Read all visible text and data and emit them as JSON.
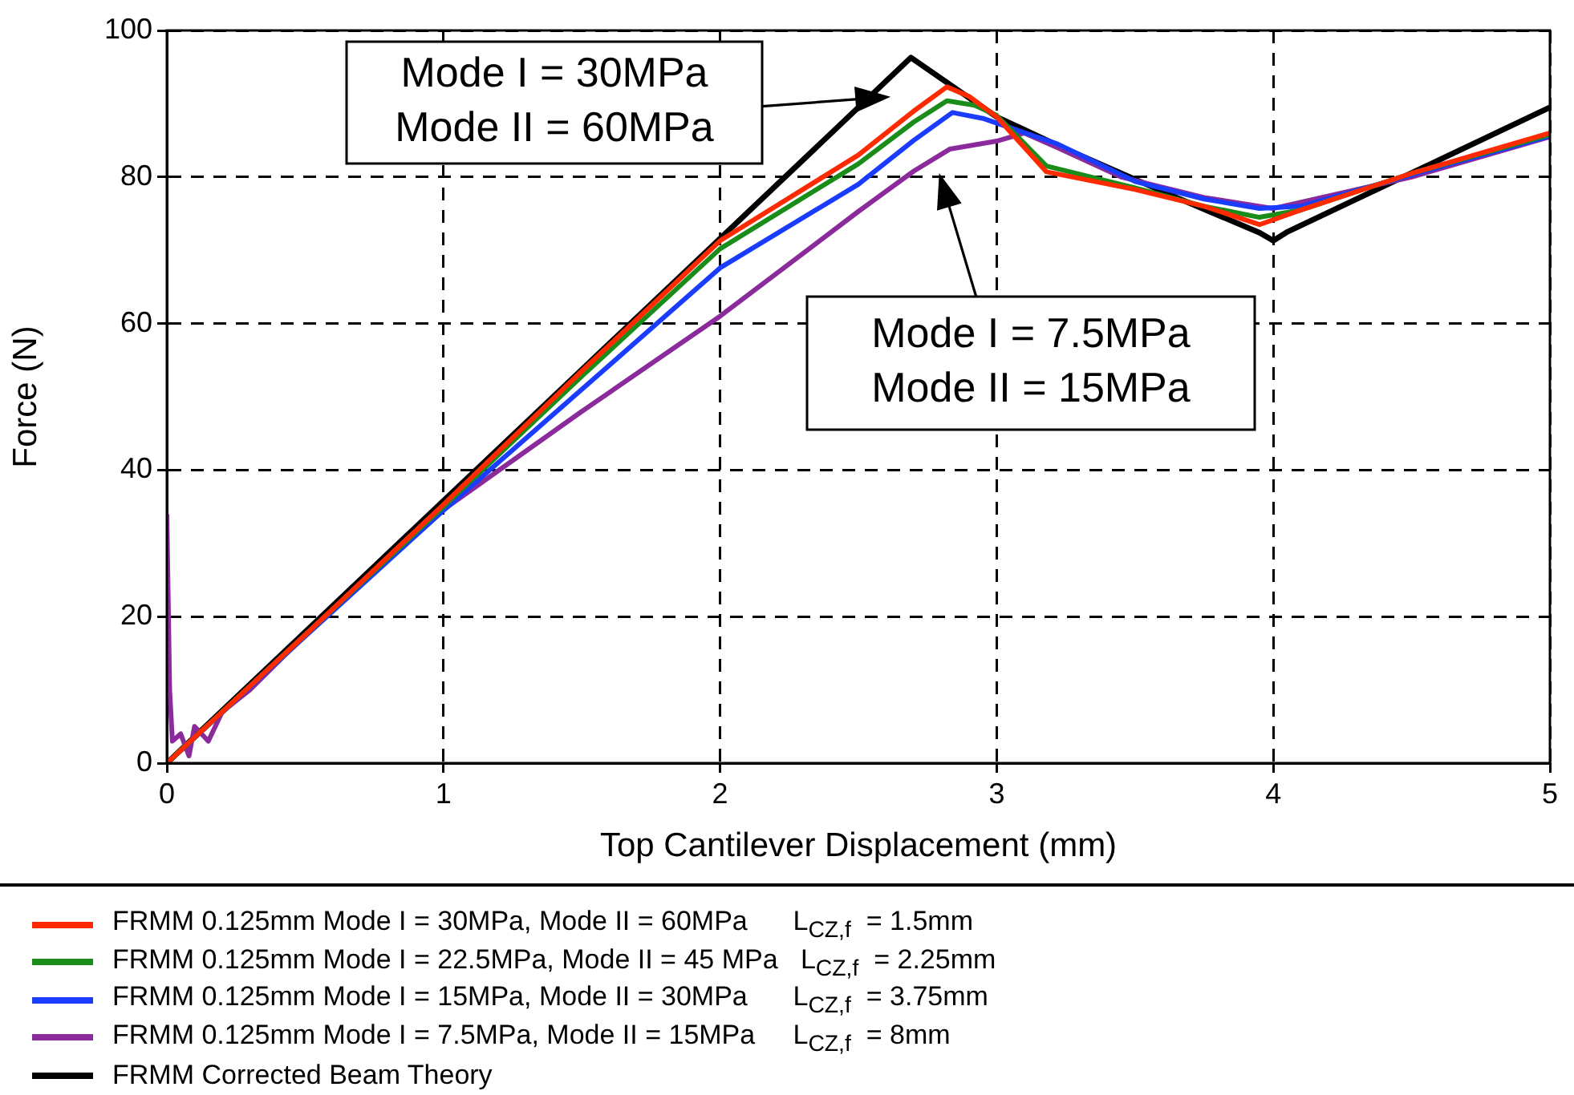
{
  "chart_data": {
    "type": "line",
    "xlabel": "Top Cantilever Displacement (mm)",
    "ylabel": "Force (N)",
    "xlim": [
      0,
      5
    ],
    "xticks": [
      0,
      1,
      2,
      3,
      4,
      5
    ],
    "ylim": [
      0,
      100
    ],
    "yticks": [
      0,
      20,
      40,
      60,
      80,
      100
    ],
    "grid": true,
    "legend": "bottom",
    "marker": "none",
    "line_style": "solid",
    "annotations": [
      "Mode I = 30MPa\nMode II = 60MPa",
      "Mode I = 7.5MPa\nMode II = 15MPa"
    ],
    "series": [
      {
        "name": "FRMM 0.125mm Mode I = 30MPa, Mode II = 60MPa      L$_{CZ,f}$  = 1.5mm",
        "color": "#ff2a00",
        "x": [
          0,
          0.5,
          1,
          1.5,
          2,
          2.5,
          2.7,
          2.82,
          2.9,
          3,
          3.18,
          3.5,
          3.75,
          3.95,
          4.1,
          4.5,
          5
        ],
        "values": [
          0,
          17.5,
          35.3,
          53.5,
          71.3,
          83,
          89,
          92.3,
          91,
          88.2,
          80.7,
          78.3,
          76,
          73.5,
          75.5,
          80.5,
          86
        ]
      },
      {
        "name": "FRMM 0.125mm Mode I = 22.5MPa, Mode II = 45 MPa   L$_{CZ,f}$  = 2.25mm",
        "color": "#1a8c1a",
        "x": [
          0,
          0.5,
          1,
          1.5,
          2,
          2.5,
          2.7,
          2.82,
          2.92,
          3,
          3.18,
          3.5,
          3.75,
          3.95,
          4.1,
          4.5,
          5
        ],
        "values": [
          0,
          17.5,
          35,
          52.8,
          70.2,
          81.8,
          87.5,
          90.4,
          89.8,
          88.4,
          81.5,
          78.5,
          76,
          74.5,
          75.5,
          80.5,
          85.8
        ]
      },
      {
        "name": "FRMM 0.125mm Mode I = 15MPa, Mode II = 30MPa      L$_{CZ,f}$  = 3.75mm",
        "color": "#1a3cff",
        "x": [
          0,
          0.5,
          1,
          1.5,
          2,
          2.5,
          2.7,
          2.84,
          2.95,
          3.22,
          3.5,
          3.75,
          3.95,
          4.1,
          4.5,
          5
        ],
        "values": [
          0,
          17.3,
          34.5,
          51,
          67.6,
          79,
          85,
          88.8,
          88,
          84.5,
          79.4,
          77,
          75.7,
          76,
          80.3,
          85.6
        ]
      },
      {
        "name": "FRMM 0.125mm Mode I = 7.5MPa, Mode II = 15MPa     L$_{CZ,f}$  = 8mm",
        "color": "#8b2a9b",
        "x": [
          0,
          0.01,
          0.02,
          0.05,
          0.08,
          0.1,
          0.15,
          0.2,
          0.3,
          0.5,
          1,
          1.5,
          2,
          2.5,
          2.7,
          2.83,
          3,
          3.1,
          3.22,
          3.45,
          3.75,
          4,
          4.5,
          5
        ],
        "values": [
          34,
          10,
          3,
          4,
          1,
          5,
          3,
          7,
          10,
          17.5,
          34.6,
          48,
          61,
          75.3,
          80.8,
          83.8,
          84.9,
          86,
          84,
          80,
          77.2,
          75.7,
          80,
          85.5
        ]
      },
      {
        "name": "FRMM Corrected Beam Theory",
        "color": "#000000",
        "x": [
          0,
          2.69,
          3,
          3.25,
          3.65,
          3.95,
          4,
          4.05,
          5
        ],
        "values": [
          0,
          96.3,
          88.2,
          83.8,
          77.2,
          72.4,
          71.3,
          72.5,
          89.5
        ]
      }
    ]
  }
}
